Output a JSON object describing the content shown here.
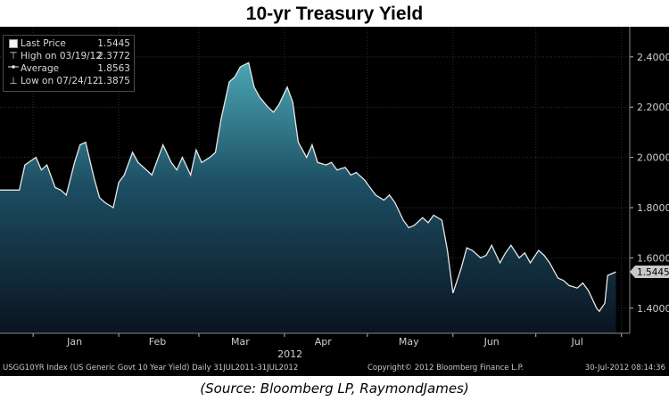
{
  "title": "10-yr Treasury Yield",
  "source": "(Source: Bloomberg LP, RaymondJames)",
  "legend": [
    {
      "symbol": "box",
      "label": "Last Price",
      "value": "1.5445"
    },
    {
      "symbol": "T",
      "label": "High on 03/19/12",
      "value": "2.3772"
    },
    {
      "symbol": "avg",
      "label": "Average",
      "value": "1.8563"
    },
    {
      "symbol": "⊥",
      "label": "Low on 07/24/12",
      "value": "1.3875"
    }
  ],
  "footer": {
    "left": "USGG10YR Index (US Generic Govt 10 Year Yield)  Daily 31JUL2011-31JUL2012",
    "center": "Copyright© 2012 Bloomberg Finance L.P.",
    "right": "30-Jul-2012 08:14:36"
  },
  "colors": {
    "background": "#000000",
    "fill_top": "#4aa6b4",
    "fill_bottom": "#0a1420",
    "line": "#e8e8e8",
    "grid": "#2f2f2f",
    "last_price_tag": "#c8c8c8"
  },
  "chart_data": {
    "type": "area",
    "title": "10-yr Treasury Yield",
    "xlabel": "",
    "ylabel": "",
    "year_label": "2012",
    "x_tick_labels": [
      "Jan",
      "Feb",
      "Mar",
      "Apr",
      "May",
      "Jun",
      "Jul"
    ],
    "y_tick_labels": [
      "1.4000",
      "1.6000",
      "1.8000",
      "2.0000",
      "2.2000",
      "2.4000"
    ],
    "ylim": [
      1.3,
      2.52
    ],
    "grid": true,
    "legend_position": "top-left",
    "last_value_label": "1.5445",
    "series": [
      {
        "name": "Last Price",
        "x": [
          "2011-12-27",
          "2011-12-29",
          "2012-01-02",
          "2012-01-04",
          "2012-01-06",
          "2012-01-09",
          "2012-01-11",
          "2012-01-13",
          "2012-01-16",
          "2012-01-18",
          "2012-01-20",
          "2012-01-23",
          "2012-01-25",
          "2012-01-27",
          "2012-01-30",
          "2012-02-01",
          "2012-02-03",
          "2012-02-06",
          "2012-02-08",
          "2012-02-10",
          "2012-02-13",
          "2012-02-15",
          "2012-02-17",
          "2012-02-20",
          "2012-02-22",
          "2012-02-24",
          "2012-02-27",
          "2012-02-29",
          "2012-03-02",
          "2012-03-05",
          "2012-03-07",
          "2012-03-09",
          "2012-03-12",
          "2012-03-14",
          "2012-03-16",
          "2012-03-19",
          "2012-03-21",
          "2012-03-23",
          "2012-03-26",
          "2012-03-28",
          "2012-03-30",
          "2012-04-02",
          "2012-04-04",
          "2012-04-06",
          "2012-04-09",
          "2012-04-11",
          "2012-04-13",
          "2012-04-16",
          "2012-04-18",
          "2012-04-20",
          "2012-04-23",
          "2012-04-25",
          "2012-04-27",
          "2012-04-30",
          "2012-05-02",
          "2012-05-04",
          "2012-05-07",
          "2012-05-09",
          "2012-05-11",
          "2012-05-14",
          "2012-05-16",
          "2012-05-18",
          "2012-05-21",
          "2012-05-23",
          "2012-05-25",
          "2012-05-28",
          "2012-05-30",
          "2012-06-01",
          "2012-06-04",
          "2012-06-06",
          "2012-06-08",
          "2012-06-11",
          "2012-06-13",
          "2012-06-15",
          "2012-06-18",
          "2012-06-20",
          "2012-06-22",
          "2012-06-25",
          "2012-06-27",
          "2012-06-29",
          "2012-07-02",
          "2012-07-04",
          "2012-07-06",
          "2012-07-09",
          "2012-07-11",
          "2012-07-13",
          "2012-07-16",
          "2012-07-18",
          "2012-07-20",
          "2012-07-23",
          "2012-07-24",
          "2012-07-26",
          "2012-07-27",
          "2012-07-30"
        ],
        "values": [
          1.87,
          1.97,
          2.0,
          1.95,
          1.97,
          1.88,
          1.87,
          1.85,
          1.98,
          2.05,
          2.06,
          1.92,
          1.84,
          1.82,
          1.8,
          1.9,
          1.93,
          2.02,
          1.98,
          1.96,
          1.93,
          1.99,
          2.05,
          1.98,
          1.95,
          2.0,
          1.93,
          2.03,
          1.98,
          2.0,
          2.02,
          2.15,
          2.3,
          2.32,
          2.36,
          2.3772,
          2.28,
          2.24,
          2.2,
          2.18,
          2.21,
          2.28,
          2.22,
          2.06,
          2.0,
          2.05,
          1.98,
          1.97,
          1.98,
          1.95,
          1.96,
          1.93,
          1.94,
          1.91,
          1.88,
          1.85,
          1.83,
          1.85,
          1.82,
          1.75,
          1.72,
          1.73,
          1.76,
          1.74,
          1.77,
          1.75,
          1.63,
          1.46,
          1.56,
          1.64,
          1.63,
          1.6,
          1.61,
          1.65,
          1.58,
          1.62,
          1.65,
          1.6,
          1.62,
          1.58,
          1.63,
          1.61,
          1.58,
          1.52,
          1.51,
          1.49,
          1.48,
          1.5,
          1.47,
          1.4,
          1.3875,
          1.42,
          1.53,
          1.5445
        ]
      }
    ]
  }
}
